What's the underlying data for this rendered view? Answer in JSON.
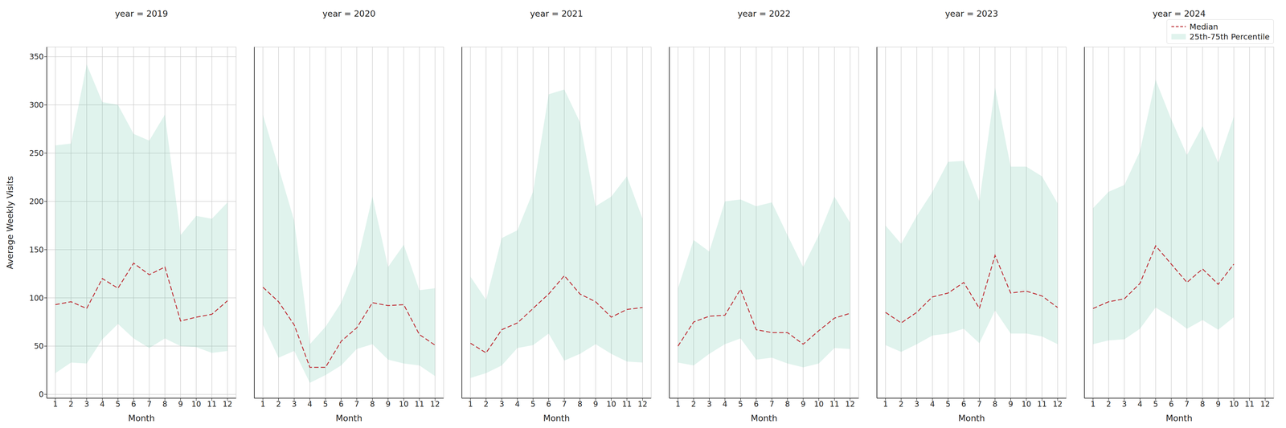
{
  "chart_data": [
    {
      "type": "line",
      "title": "year = 2019",
      "x_label": "Month",
      "y_label": "Average Weekly Visits",
      "x": [
        1,
        2,
        3,
        4,
        5,
        6,
        7,
        8,
        9,
        10,
        11,
        12
      ],
      "xlim": [
        0.45,
        12.55
      ],
      "xticks": [
        1,
        2,
        3,
        4,
        5,
        6,
        7,
        8,
        9,
        10,
        11,
        12
      ],
      "ylim": [
        -4,
        360
      ],
      "yticks": [
        0,
        50,
        100,
        150,
        200,
        250,
        300,
        350
      ],
      "grid": true,
      "series": [
        {
          "name": "Median",
          "type": "line",
          "color": "#c0393f",
          "line_style": "dashed",
          "values": [
            93,
            96,
            89,
            120,
            110,
            136,
            124,
            132,
            76,
            80,
            83,
            97
          ]
        },
        {
          "name": "25th-75th Percentile",
          "type": "area",
          "color": "#66c2a5",
          "values": [
            [
              22,
              258
            ],
            [
              33,
              260
            ],
            [
              32,
              342
            ],
            [
              57,
              303
            ],
            [
              73,
              300
            ],
            [
              58,
              270
            ],
            [
              48,
              263
            ],
            [
              58,
              290
            ],
            [
              50,
              165
            ],
            [
              49,
              185
            ],
            [
              43,
              182
            ],
            [
              45,
              199
            ]
          ]
        }
      ]
    },
    {
      "type": "line",
      "title": "year = 2020",
      "x_label": "Month",
      "x": [
        1,
        2,
        3,
        4,
        5,
        6,
        7,
        8,
        9,
        10,
        11,
        12
      ],
      "xlim": [
        0.45,
        12.55
      ],
      "xticks": [
        1,
        2,
        3,
        4,
        5,
        6,
        7,
        8,
        9,
        10,
        11,
        12
      ],
      "ylim": [
        -4,
        360
      ],
      "yticks": [
        0,
        50,
        100,
        150,
        200,
        250,
        300,
        350
      ],
      "grid": true,
      "tick_labels": "x",
      "series": [
        {
          "name": "Median",
          "type": "line",
          "color": "#c0393f",
          "line_style": "dashed",
          "values": [
            111,
            96,
            72,
            28,
            28,
            55,
            69,
            95,
            92,
            93,
            62,
            51
          ]
        },
        {
          "name": "25th-75th Percentile",
          "type": "area",
          "color": "#66c2a5",
          "values": [
            [
              72,
              290
            ],
            [
              38,
              235
            ],
            [
              45,
              180
            ],
            [
              12,
              52
            ],
            [
              20,
              70
            ],
            [
              30,
              95
            ],
            [
              47,
              135
            ],
            [
              52,
              205
            ],
            [
              36,
              132
            ],
            [
              32,
              155
            ],
            [
              30,
              108
            ],
            [
              19,
              110
            ]
          ]
        }
      ]
    },
    {
      "type": "line",
      "title": "year = 2021",
      "x_label": "Month",
      "x": [
        1,
        2,
        3,
        4,
        5,
        6,
        7,
        8,
        9,
        10,
        11,
        12
      ],
      "xlim": [
        0.45,
        12.55
      ],
      "xticks": [
        1,
        2,
        3,
        4,
        5,
        6,
        7,
        8,
        9,
        10,
        11,
        12
      ],
      "ylim": [
        -4,
        360
      ],
      "yticks": [
        0,
        50,
        100,
        150,
        200,
        250,
        300,
        350
      ],
      "grid": true,
      "tick_labels": "x",
      "series": [
        {
          "name": "Median",
          "type": "line",
          "color": "#c0393f",
          "line_style": "dashed",
          "values": [
            53,
            43,
            67,
            74,
            89,
            104,
            123,
            104,
            96,
            80,
            88,
            90
          ]
        },
        {
          "name": "25th-75th Percentile",
          "type": "area",
          "color": "#66c2a5",
          "values": [
            [
              17,
              122
            ],
            [
              22,
              98
            ],
            [
              30,
              162
            ],
            [
              48,
              170
            ],
            [
              51,
              210
            ],
            [
              63,
              311
            ],
            [
              35,
              316
            ],
            [
              42,
              282
            ],
            [
              52,
              195
            ],
            [
              42,
              205
            ],
            [
              34,
              226
            ],
            [
              33,
              182
            ]
          ]
        }
      ]
    },
    {
      "type": "line",
      "title": "year = 2022",
      "x_label": "Month",
      "x": [
        1,
        2,
        3,
        4,
        5,
        6,
        7,
        8,
        9,
        10,
        11,
        12
      ],
      "xlim": [
        0.45,
        12.55
      ],
      "xticks": [
        1,
        2,
        3,
        4,
        5,
        6,
        7,
        8,
        9,
        10,
        11,
        12
      ],
      "ylim": [
        -4,
        360
      ],
      "yticks": [
        0,
        50,
        100,
        150,
        200,
        250,
        300,
        350
      ],
      "grid": true,
      "tick_labels": "x",
      "series": [
        {
          "name": "Median",
          "type": "line",
          "color": "#c0393f",
          "line_style": "dashed",
          "values": [
            50,
            75,
            81,
            82,
            109,
            67,
            64,
            64,
            52,
            66,
            79,
            84
          ]
        },
        {
          "name": "25th-75th Percentile",
          "type": "area",
          "color": "#66c2a5",
          "values": [
            [
              33,
              110
            ],
            [
              30,
              160
            ],
            [
              42,
              148
            ],
            [
              52,
              200
            ],
            [
              58,
              202
            ],
            [
              36,
              195
            ],
            [
              38,
              199
            ],
            [
              32,
              165
            ],
            [
              28,
              132
            ],
            [
              32,
              165
            ],
            [
              48,
              205
            ],
            [
              47,
              178
            ]
          ]
        }
      ]
    },
    {
      "type": "line",
      "title": "year = 2023",
      "x_label": "Month",
      "x": [
        1,
        2,
        3,
        4,
        5,
        6,
        7,
        8,
        9,
        10,
        11,
        12
      ],
      "xlim": [
        0.45,
        12.55
      ],
      "xticks": [
        1,
        2,
        3,
        4,
        5,
        6,
        7,
        8,
        9,
        10,
        11,
        12
      ],
      "ylim": [
        -4,
        360
      ],
      "yticks": [
        0,
        50,
        100,
        150,
        200,
        250,
        300,
        350
      ],
      "grid": true,
      "tick_labels": "x",
      "series": [
        {
          "name": "Median",
          "type": "line",
          "color": "#c0393f",
          "line_style": "dashed",
          "values": [
            85,
            74,
            85,
            101,
            105,
            116,
            89,
            144,
            105,
            107,
            102,
            90
          ]
        },
        {
          "name": "25th-75th Percentile",
          "type": "area",
          "color": "#66c2a5",
          "values": [
            [
              51,
              175
            ],
            [
              44,
              156
            ],
            [
              52,
              185
            ],
            [
              61,
              210
            ],
            [
              63,
              241
            ],
            [
              68,
              242
            ],
            [
              53,
              200
            ],
            [
              87,
              318
            ],
            [
              63,
              236
            ],
            [
              63,
              236
            ],
            [
              60,
              226
            ],
            [
              52,
              198
            ]
          ]
        }
      ]
    },
    {
      "type": "line",
      "title": "year = 2024",
      "x_label": "Month",
      "x": [
        1,
        2,
        3,
        4,
        5,
        6,
        7,
        8,
        9,
        10,
        11,
        12
      ],
      "xlim": [
        0.45,
        12.55
      ],
      "xticks": [
        1,
        2,
        3,
        4,
        5,
        6,
        7,
        8,
        9,
        10,
        11,
        12
      ],
      "ylim": [
        -4,
        360
      ],
      "yticks": [
        0,
        50,
        100,
        150,
        200,
        250,
        300,
        350
      ],
      "grid": true,
      "tick_labels": "x",
      "legend": "upper right",
      "series": [
        {
          "name": "Median",
          "type": "line",
          "color": "#c0393f",
          "line_style": "dashed",
          "values": [
            89,
            96,
            99,
            115,
            154,
            135,
            116,
            130,
            114,
            135,
            null,
            null
          ]
        },
        {
          "name": "25th-75th Percentile",
          "type": "area",
          "color": "#66c2a5",
          "values": [
            [
              52,
              193
            ],
            [
              56,
              210
            ],
            [
              57,
              217
            ],
            [
              68,
              252
            ],
            [
              90,
              326
            ],
            [
              80,
              285
            ],
            [
              68,
              248
            ],
            [
              77,
              278
            ],
            [
              67,
              240
            ],
            [
              80,
              288
            ],
            null,
            null
          ]
        }
      ]
    }
  ]
}
